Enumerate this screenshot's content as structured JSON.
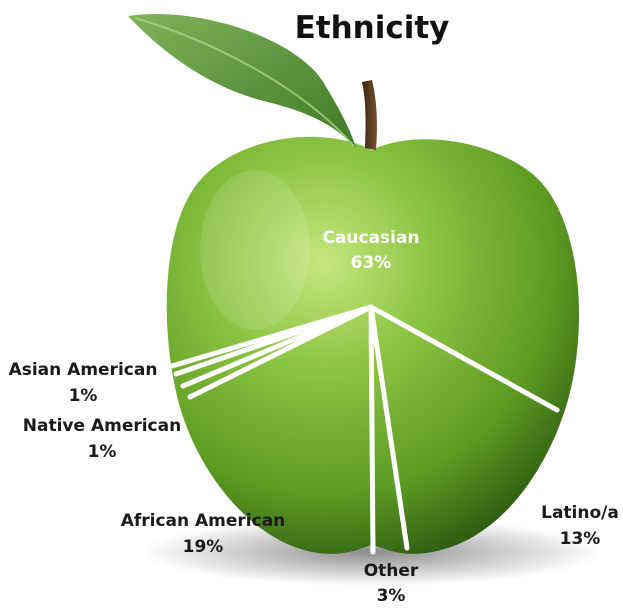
{
  "chart_data": {
    "type": "pie",
    "title": "Ethnicity",
    "slices": [
      {
        "label": "Caucasian",
        "value": 63,
        "value_label": "63%"
      },
      {
        "label": "Latino/a",
        "value": 13,
        "value_label": "13%"
      },
      {
        "label": "Other",
        "value": 3,
        "value_label": "3%"
      },
      {
        "label": "African American",
        "value": 19,
        "value_label": "19%"
      },
      {
        "label": "Native American",
        "value": 1,
        "value_label": "1%"
      },
      {
        "label": "Asian American",
        "value": 1,
        "value_label": "1%"
      }
    ]
  },
  "colors": {
    "apple_light": "#a6d35a",
    "apple_mid": "#6faa2a",
    "apple_dark": "#2f5e12",
    "leaf": "#4d8a2e",
    "stem": "#5a3a1e",
    "divider": "#ffffff",
    "text_dark": "#1a1a1a",
    "text_light": "#ffffff"
  }
}
